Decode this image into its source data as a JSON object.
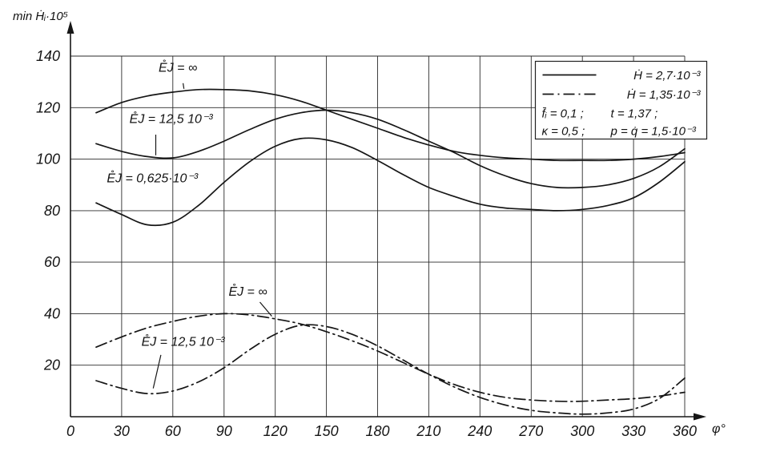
{
  "colors": {
    "ink": "#161616",
    "grid": "#2b2b2b",
    "background": "#ffffff"
  },
  "chart_data": {
    "type": "line",
    "title": "",
    "xlabel": "φ°",
    "ylabel": "min Ḣᵢ·10⁵",
    "xlim": [
      0,
      360
    ],
    "ylim": [
      0,
      140
    ],
    "x_ticks": [
      0,
      30,
      60,
      90,
      120,
      150,
      180,
      210,
      240,
      270,
      300,
      330,
      360
    ],
    "y_ticks": [
      20,
      40,
      60,
      80,
      100,
      120,
      140
    ],
    "grid": true,
    "legend_position": "top-right",
    "x": [
      15,
      30,
      45,
      60,
      75,
      90,
      105,
      120,
      135,
      150,
      165,
      180,
      195,
      210,
      225,
      240,
      255,
      270,
      285,
      300,
      315,
      330,
      345,
      360
    ],
    "series": [
      {
        "name": "E̊J = ∞",
        "legend_group": "Ḣ = 2,7·10⁻³",
        "line": "solid",
        "values": [
          118,
          122,
          124.5,
          126,
          127,
          127,
          126.5,
          125,
          122.5,
          119,
          115.5,
          112,
          108.5,
          105.5,
          103,
          101.5,
          100.5,
          100,
          99.5,
          99.5,
          99.5,
          100,
          101,
          102.5
        ]
      },
      {
        "name": "E̊J = 12,5·10⁻³",
        "legend_group": "Ḣ = 2,7·10⁻³",
        "line": "solid",
        "values": [
          106,
          103,
          101,
          100.5,
          103,
          107,
          111.5,
          115.5,
          118,
          119,
          118,
          115.5,
          111.5,
          107,
          102.5,
          97.5,
          93.5,
          90.5,
          89,
          89,
          90,
          92.5,
          97,
          104
        ]
      },
      {
        "name": "E̊J = 0,625·10⁻³",
        "legend_group": "Ḣ = 2,7·10⁻³",
        "line": "solid",
        "values": [
          83,
          78.5,
          74.5,
          75.5,
          82,
          91,
          99,
          105,
          108,
          107.5,
          104.5,
          99.5,
          94,
          89,
          85.5,
          82.5,
          81,
          80.5,
          80,
          80.5,
          82,
          85,
          91,
          99
        ]
      },
      {
        "name": "E̊J = ∞",
        "legend_group": "Ḣ = 1,35·10⁻³",
        "line": "dashdot",
        "values": [
          27,
          31,
          34.5,
          37,
          39,
          40,
          39.5,
          38,
          36,
          33,
          29.5,
          25.5,
          21,
          16.5,
          12.5,
          9.5,
          7.5,
          6.5,
          6,
          6,
          6.5,
          7,
          8,
          9.5
        ]
      },
      {
        "name": "E̊J = 12,5·10⁻³",
        "legend_group": "Ḣ = 1,35·10⁻³",
        "line": "dashdot",
        "values": [
          14,
          11,
          9,
          10,
          13.5,
          19,
          26,
          32,
          35.5,
          35,
          32,
          27.5,
          22,
          16.5,
          11.5,
          7.5,
          4.5,
          2.5,
          1.5,
          1,
          1.5,
          3,
          7,
          15
        ]
      }
    ],
    "annotations": [
      {
        "text": "E̊J = ∞",
        "x": 63,
        "y": 134,
        "leader": [
          66,
          129.5,
          66.5,
          127.3
        ]
      },
      {
        "text": "E̊J = 12,5 10⁻³",
        "x": 59,
        "y": 114,
        "leader": [
          50,
          109.5,
          50,
          101.5
        ]
      },
      {
        "text": "E̊J = 0,625·10⁻³",
        "x": 48,
        "y": 91
      },
      {
        "text": "E̊J = ∞",
        "x": 104,
        "y": 47,
        "leader": [
          111,
          44.5,
          118,
          39
        ]
      },
      {
        "text": "E̊J = 12,5 10⁻³",
        "x": 66,
        "y": 27.5,
        "leader": [
          53,
          24,
          48.5,
          11
        ]
      }
    ],
    "legend": {
      "entries": [
        {
          "line": "solid",
          "label": "Ḣ = 2,7·10⁻³"
        },
        {
          "line": "dashdot",
          "label": "Ḣ = 1,35·10⁻³"
        }
      ],
      "params": [
        [
          "f̄ᵢ = 0,1 ;",
          "t = 1,37 ;"
        ],
        [
          "κ = 0,5 ;",
          "p = q̇ = 1,5·10⁻³"
        ]
      ]
    }
  }
}
